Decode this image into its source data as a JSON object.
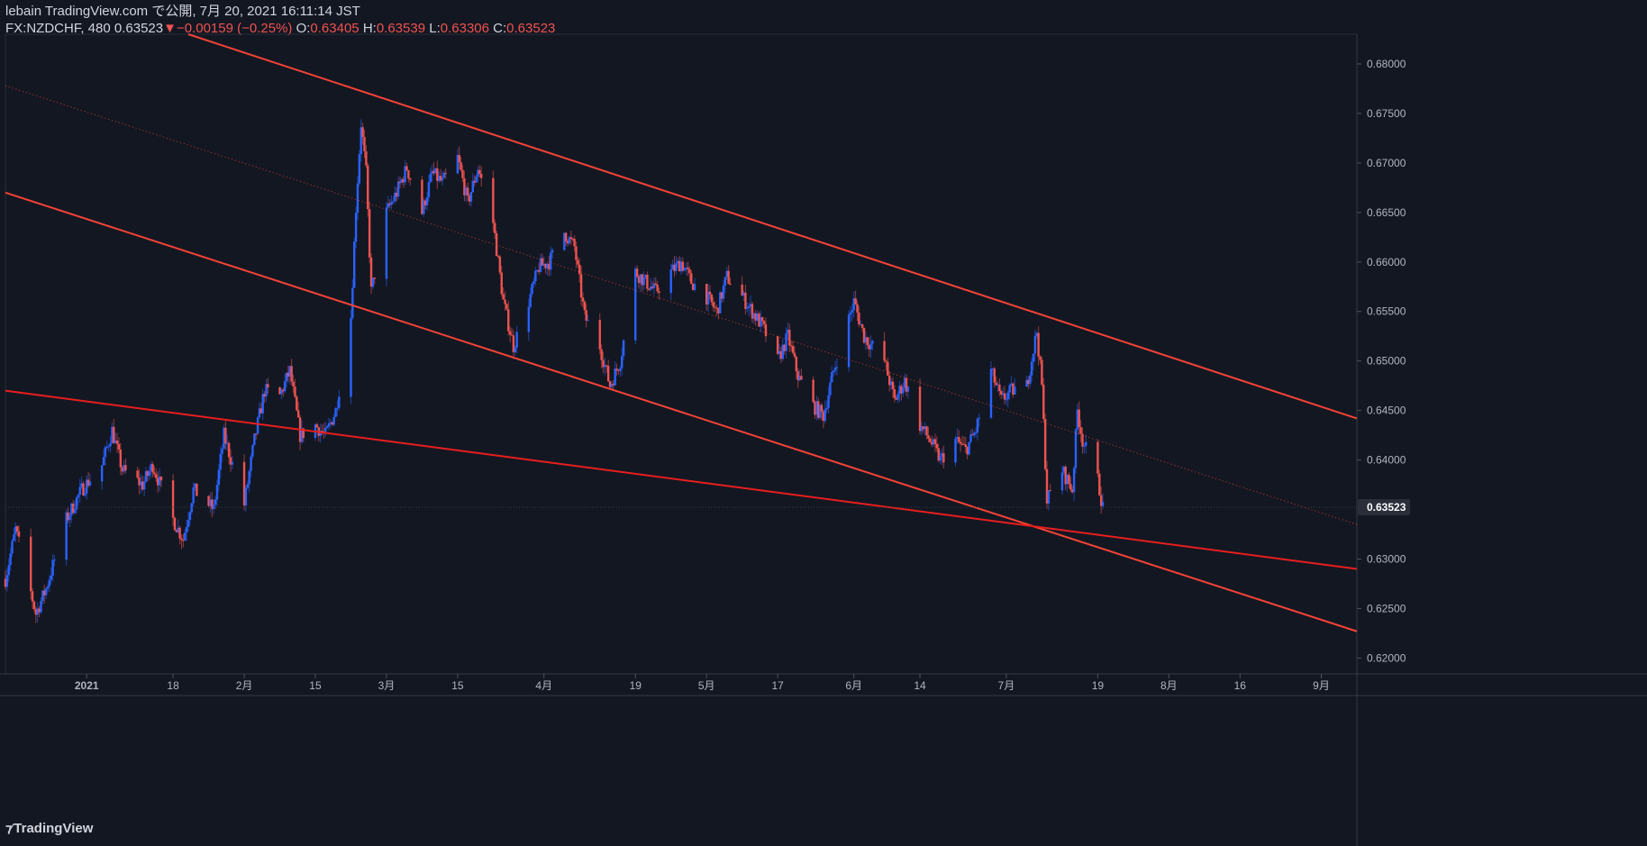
{
  "header": {
    "line1": "lebain TradingView.com で公開, 7月 20, 2021 16:11:14 JST",
    "symbol": "FX:NZDCHF, 480",
    "last": "0.63523",
    "change": "−0.00159 (−0.25%)",
    "o_label": "O:",
    "o_val": "0.63405",
    "h_label": "H:",
    "h_val": "0.63539",
    "l_label": "L:",
    "l_val": "0.63306",
    "c_label": "C:",
    "c_val": "0.63523"
  },
  "footer": {
    "brand": "TradingView",
    "logo_icon": "tradingview-logo-icon"
  },
  "colors": {
    "background": "#131722",
    "up": "#2962ff",
    "down": "#ef5350",
    "trendline": "#f44336",
    "grid": "#2a2e39",
    "text": "#b2b5be"
  },
  "chart_data": {
    "type": "candlestick",
    "title": "",
    "xlabel": "",
    "ylabel": "",
    "ylim": [
      0.6184,
      0.683
    ],
    "y_ticks": [
      "0.68000",
      "0.67500",
      "0.67000",
      "0.66500",
      "0.66000",
      "0.65500",
      "0.65000",
      "0.64500",
      "0.64000",
      "0.63523",
      "0.63000",
      "0.62500",
      "0.62000"
    ],
    "current_price": "0.63523",
    "x_ticks": [
      {
        "label": "2021",
        "bold": true,
        "date": "2021-01-01"
      },
      {
        "label": "18",
        "date": "2021-01-18"
      },
      {
        "label": "2月",
        "date": "2021-02-01"
      },
      {
        "label": "15",
        "date": "2021-02-15"
      },
      {
        "label": "3月",
        "date": "2021-03-01"
      },
      {
        "label": "15",
        "date": "2021-03-15"
      },
      {
        "label": "4月",
        "date": "2021-04-01"
      },
      {
        "label": "19",
        "date": "2021-04-19"
      },
      {
        "label": "5月",
        "date": "2021-05-03"
      },
      {
        "label": "17",
        "date": "2021-05-17"
      },
      {
        "label": "6月",
        "date": "2021-06-01"
      },
      {
        "label": "14",
        "date": "2021-06-14"
      },
      {
        "label": "7月",
        "date": "2021-07-01"
      },
      {
        "label": "19",
        "date": "2021-07-19"
      },
      {
        "label": "8月",
        "date": "2021-08-02"
      },
      {
        "label": "16",
        "date": "2021-08-16"
      },
      {
        "label": "9月",
        "date": "2021-09-01"
      }
    ],
    "price_path": [
      [
        "2020-12-16",
        0.628
      ],
      [
        "2020-12-18",
        0.633
      ],
      [
        "2020-12-22",
        0.6245
      ],
      [
        "2020-12-24",
        0.627
      ],
      [
        "2020-12-28",
        0.634
      ],
      [
        "2020-12-31",
        0.637
      ],
      [
        "2021-01-04",
        0.6395
      ],
      [
        "2021-01-06",
        0.643
      ],
      [
        "2021-01-08",
        0.639
      ],
      [
        "2021-01-12",
        0.6375
      ],
      [
        "2021-01-14",
        0.6395
      ],
      [
        "2021-01-18",
        0.634
      ],
      [
        "2021-01-20",
        0.632
      ],
      [
        "2021-01-22",
        0.637
      ],
      [
        "2021-01-26",
        0.635
      ],
      [
        "2021-01-28",
        0.6425
      ],
      [
        "2021-02-01",
        0.6355
      ],
      [
        "2021-02-03",
        0.642
      ],
      [
        "2021-02-05",
        0.647
      ],
      [
        "2021-02-08",
        0.6465
      ],
      [
        "2021-02-10",
        0.649
      ],
      [
        "2021-02-12",
        0.6425
      ],
      [
        "2021-02-15",
        0.6435
      ],
      [
        "2021-02-17",
        0.6425
      ],
      [
        "2021-02-19",
        0.645
      ],
      [
        "2021-02-22",
        0.6545
      ],
      [
        "2021-02-23",
        0.6655
      ],
      [
        "2021-02-24",
        0.674
      ],
      [
        "2021-02-25",
        0.669
      ],
      [
        "2021-02-26",
        0.657
      ],
      [
        "2021-03-01",
        0.665
      ],
      [
        "2021-03-03",
        0.667
      ],
      [
        "2021-03-05",
        0.6695
      ],
      [
        "2021-03-08",
        0.665
      ],
      [
        "2021-03-10",
        0.669
      ],
      [
        "2021-03-12",
        0.668
      ],
      [
        "2021-03-15",
        0.6705
      ],
      [
        "2021-03-17",
        0.666
      ],
      [
        "2021-03-19",
        0.6695
      ],
      [
        "2021-03-22",
        0.664
      ],
      [
        "2021-03-24",
        0.656
      ],
      [
        "2021-03-26",
        0.6515
      ],
      [
        "2021-03-29",
        0.656
      ],
      [
        "2021-03-31",
        0.6595
      ],
      [
        "2021-04-02",
        0.66
      ],
      [
        "2021-04-05",
        0.663
      ],
      [
        "2021-04-07",
        0.6615
      ],
      [
        "2021-04-09",
        0.6545
      ],
      [
        "2021-04-12",
        0.6515
      ],
      [
        "2021-04-14",
        0.6475
      ],
      [
        "2021-04-16",
        0.65
      ],
      [
        "2021-04-19",
        0.659
      ],
      [
        "2021-04-21",
        0.658
      ],
      [
        "2021-04-23",
        0.657
      ],
      [
        "2021-04-26",
        0.659
      ],
      [
        "2021-04-28",
        0.66
      ],
      [
        "2021-04-30",
        0.658
      ],
      [
        "2021-05-03",
        0.6565
      ],
      [
        "2021-05-05",
        0.655
      ],
      [
        "2021-05-07",
        0.6585
      ],
      [
        "2021-05-10",
        0.6565
      ],
      [
        "2021-05-12",
        0.655
      ],
      [
        "2021-05-14",
        0.6535
      ],
      [
        "2021-05-17",
        0.65
      ],
      [
        "2021-05-19",
        0.6525
      ],
      [
        "2021-05-21",
        0.6485
      ],
      [
        "2021-05-24",
        0.6455
      ],
      [
        "2021-05-26",
        0.6445
      ],
      [
        "2021-05-28",
        0.649
      ],
      [
        "2021-06-01",
        0.656
      ],
      [
        "2021-06-03",
        0.6525
      ],
      [
        "2021-06-07",
        0.65
      ],
      [
        "2021-06-09",
        0.646
      ],
      [
        "2021-06-11",
        0.648
      ],
      [
        "2021-06-14",
        0.6435
      ],
      [
        "2021-06-16",
        0.642
      ],
      [
        "2021-06-18",
        0.64
      ],
      [
        "2021-06-21",
        0.642
      ],
      [
        "2021-06-23",
        0.641
      ],
      [
        "2021-06-25",
        0.643
      ],
      [
        "2021-06-28",
        0.649
      ],
      [
        "2021-06-30",
        0.646
      ],
      [
        "2021-07-02",
        0.647
      ],
      [
        "2021-07-05",
        0.6475
      ],
      [
        "2021-07-07",
        0.653
      ],
      [
        "2021-07-08",
        0.6475
      ],
      [
        "2021-07-09",
        0.636
      ],
      [
        "2021-07-12",
        0.639
      ],
      [
        "2021-07-14",
        0.637
      ],
      [
        "2021-07-15",
        0.645
      ],
      [
        "2021-07-16",
        0.642
      ],
      [
        "2021-07-19",
        0.638
      ],
      [
        "2021-07-20",
        0.6352
      ]
    ],
    "trendlines": [
      {
        "name": "channel-upper",
        "points": [
          [
            "2021-01-21",
            0.683
          ],
          [
            "2021-09-08",
            0.6442
          ]
        ]
      },
      {
        "name": "channel-mid-dotted",
        "style": "dotted",
        "points": [
          [
            "2020-12-16",
            0.6778
          ],
          [
            "2021-09-08",
            0.6335
          ]
        ]
      },
      {
        "name": "channel-lower",
        "points": [
          [
            "2020-12-16",
            0.667
          ],
          [
            "2021-09-08",
            0.6227
          ]
        ]
      },
      {
        "name": "support-line",
        "points": [
          [
            "2020-12-16",
            0.647
          ],
          [
            "2021-09-08",
            0.629
          ]
        ]
      }
    ]
  }
}
